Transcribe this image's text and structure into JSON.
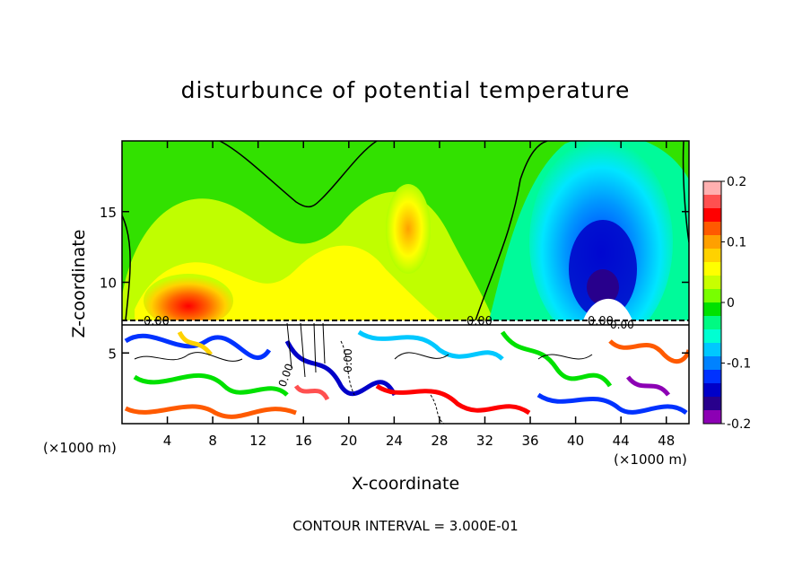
{
  "chart_data": {
    "type": "heatmap",
    "title": "disturbunce of potential temperature",
    "xlabel": "X-coordinate",
    "ylabel": "Z-coordinate",
    "x_unit": "(×1000 m)",
    "xlim": [
      0,
      50
    ],
    "ylim": [
      0,
      20
    ],
    "x_ticks": [
      4,
      8,
      12,
      16,
      20,
      24,
      28,
      32,
      36,
      40,
      44,
      48
    ],
    "y_ticks": [
      5,
      10,
      15
    ],
    "colorbar": {
      "range": [
        -0.2,
        0.2
      ],
      "tick_labels": [
        "0.2",
        "0.1",
        "0",
        "-0.1",
        "-0.2"
      ],
      "tick_values": [
        0.2,
        0.1,
        0,
        -0.1,
        -0.2
      ],
      "colors": [
        "#ffb0b0",
        "#ff5050",
        "#ff0000",
        "#ff5a00",
        "#ffa000",
        "#ffd200",
        "#ffff00",
        "#c8ff00",
        "#78ff00",
        "#00e100",
        "#00fa82",
        "#00ffd2",
        "#00c8ff",
        "#0082ff",
        "#0032ff",
        "#0000c8",
        "#28008c",
        "#8c00b4"
      ]
    },
    "contour_labels": [
      "0.00",
      "0.00",
      "0.00",
      "0.00",
      "0.00",
      "0.00"
    ],
    "contour_interval_text": "CONTOUR INTERVAL = 3.000E-01"
  }
}
